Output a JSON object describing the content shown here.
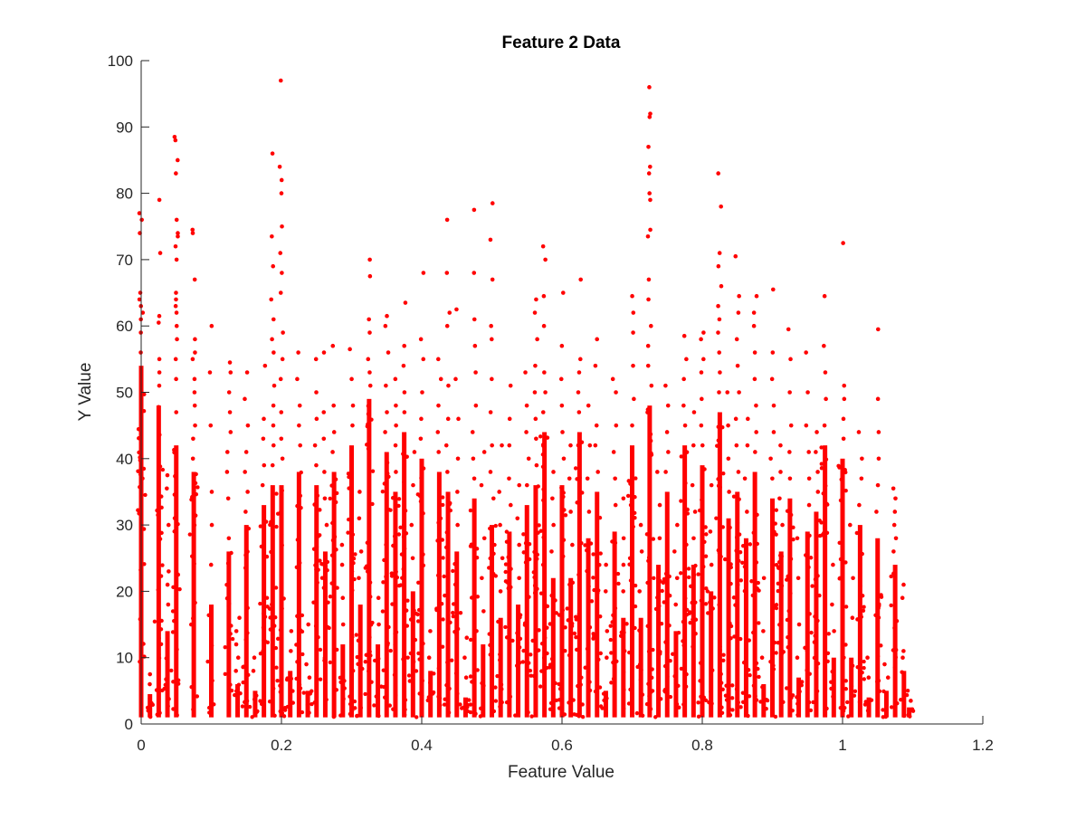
{
  "chart_data": {
    "type": "scatter",
    "title": "Feature 2 Data",
    "xlabel": "Feature Value",
    "ylabel": "Y Value",
    "xlim": [
      0,
      1.2
    ],
    "ylim": [
      0,
      100
    ],
    "xticks": [
      0,
      0.2,
      0.4,
      0.6,
      0.8,
      1,
      1.2
    ],
    "xtick_labels": [
      "0",
      "0.2",
      "0.4",
      "0.6",
      "0.8",
      "1",
      "1.2"
    ],
    "yticks": [
      0,
      10,
      20,
      30,
      40,
      50,
      60,
      70,
      80,
      90,
      100
    ],
    "ytick_labels": [
      "0",
      "10",
      "20",
      "30",
      "40",
      "50",
      "60",
      "70",
      "80",
      "90",
      "100"
    ],
    "grid": false,
    "marker_color": "#ff0000",
    "series": [
      {
        "name": "Feature 2",
        "note": "Points fall in vertical stripes at discrete feature values; each stripe spans from ~1 up to a dense-top value with sparser outliers above.",
        "stripes": [
          {
            "x": 0.0,
            "dense_max": 54,
            "outliers": [
              56,
              59,
              61,
              62,
              63,
              64,
              65,
              74,
              76,
              77
            ]
          },
          {
            "x": 0.0125,
            "dense_max": 4.5,
            "outliers": [
              6,
              7.5
            ]
          },
          {
            "x": 0.025,
            "dense_max": 48,
            "outliers": [
              51,
              53,
              55,
              60.5,
              61.5,
              71,
              79
            ]
          },
          {
            "x": 0.0375,
            "dense_max": 14,
            "outliers": [
              18,
              21,
              23,
              30,
              35.5,
              37.5
            ]
          },
          {
            "x": 0.05,
            "dense_max": 42,
            "outliers": [
              47,
              52,
              55,
              58,
              60,
              62,
              63,
              64,
              65,
              70,
              72,
              73.5,
              74,
              76,
              83,
              85,
              88,
              88.5
            ]
          },
          {
            "x": 0.075,
            "dense_max": 38,
            "outliers": [
              40,
              43,
              45,
              48,
              50,
              52,
              55,
              56,
              58,
              67,
              74,
              74.5
            ]
          },
          {
            "x": 0.1,
            "dense_max": 18,
            "outliers": [
              24,
              30,
              35,
              45,
              53,
              60
            ]
          },
          {
            "x": 0.125,
            "dense_max": 26,
            "outliers": [
              28,
              34,
              38,
              41,
              44,
              47,
              50,
              53,
              54.5
            ]
          },
          {
            "x": 0.1375,
            "dense_max": 6,
            "outliers": [
              8,
              10,
              12,
              14,
              16
            ]
          },
          {
            "x": 0.15,
            "dense_max": 30,
            "outliers": [
              32,
              35,
              38,
              41,
              45,
              49,
              53
            ]
          },
          {
            "x": 0.1625,
            "dense_max": 5,
            "outliers": [
              8,
              10
            ]
          },
          {
            "x": 0.175,
            "dense_max": 33,
            "outliers": [
              36,
              39,
              43,
              46,
              54
            ]
          },
          {
            "x": 0.1875,
            "dense_max": 36,
            "outliers": [
              39,
              42,
              45,
              48,
              51,
              56,
              58,
              61,
              64,
              69,
              73.5,
              86
            ]
          },
          {
            "x": 0.2,
            "dense_max": 36,
            "outliers": [
              40,
              43,
              47,
              52,
              55,
              59,
              65,
              68,
              71,
              75,
              80,
              82,
              84,
              97
            ]
          },
          {
            "x": 0.2125,
            "dense_max": 8,
            "outliers": [
              11,
              14
            ]
          },
          {
            "x": 0.225,
            "dense_max": 38,
            "outliers": [
              42,
              45,
              48,
              52,
              56
            ]
          },
          {
            "x": 0.2375,
            "dense_max": 5,
            "outliers": [
              7,
              9,
              15
            ]
          },
          {
            "x": 0.25,
            "dense_max": 36,
            "outliers": [
              39,
              42,
              46,
              50,
              55
            ]
          },
          {
            "x": 0.2625,
            "dense_max": 26,
            "outliers": [
              30,
              34,
              38,
              43,
              47,
              56
            ]
          },
          {
            "x": 0.275,
            "dense_max": 38,
            "outliers": [
              41,
              44,
              48,
              57
            ]
          },
          {
            "x": 0.2875,
            "dense_max": 12,
            "outliers": [
              15,
              19,
              24,
              27
            ]
          },
          {
            "x": 0.3,
            "dense_max": 42,
            "outliers": [
              45,
              48,
              52,
              56.5
            ]
          },
          {
            "x": 0.3125,
            "dense_max": 18,
            "outliers": [
              22,
              26,
              31,
              35
            ]
          },
          {
            "x": 0.325,
            "dense_max": 49,
            "outliers": [
              51,
              53,
              55,
              59,
              61,
              67.5,
              70
            ]
          },
          {
            "x": 0.3375,
            "dense_max": 12,
            "outliers": [
              15,
              19
            ]
          },
          {
            "x": 0.35,
            "dense_max": 41,
            "outliers": [
              44,
              47,
              51,
              56,
              60,
              61.5
            ]
          },
          {
            "x": 0.3625,
            "dense_max": 35,
            "outliers": [
              38,
              42,
              45,
              48,
              52
            ]
          },
          {
            "x": 0.375,
            "dense_max": 44,
            "outliers": [
              47,
              50,
              54,
              57,
              63.5
            ]
          },
          {
            "x": 0.3875,
            "dense_max": 20,
            "outliers": [
              25,
              30,
              36,
              41
            ]
          },
          {
            "x": 0.4,
            "dense_max": 40,
            "outliers": [
              43,
              46,
              50,
              55,
              58,
              68
            ]
          },
          {
            "x": 0.4125,
            "dense_max": 8,
            "outliers": [
              10,
              14
            ]
          },
          {
            "x": 0.425,
            "dense_max": 38,
            "outliers": [
              41,
              44,
              48,
              52,
              55
            ]
          },
          {
            "x": 0.4375,
            "dense_max": 35,
            "outliers": [
              38,
              42,
              46,
              51,
              60,
              62,
              68,
              76
            ]
          },
          {
            "x": 0.45,
            "dense_max": 26,
            "outliers": [
              30,
              35,
              40,
              46,
              52,
              62.5
            ]
          },
          {
            "x": 0.4625,
            "dense_max": 4,
            "outliers": [
              7,
              10,
              13
            ]
          },
          {
            "x": 0.475,
            "dense_max": 34,
            "outliers": [
              37,
              40,
              44,
              48,
              53,
              57,
              61,
              68,
              77.5
            ]
          },
          {
            "x": 0.4875,
            "dense_max": 12,
            "outliers": [
              17,
              22,
              28,
              36,
              41
            ]
          },
          {
            "x": 0.5,
            "dense_max": 30,
            "outliers": [
              34,
              38,
              42,
              47,
              52,
              58,
              60,
              67,
              73,
              78.5
            ]
          },
          {
            "x": 0.5125,
            "dense_max": 16,
            "outliers": [
              20,
              25,
              30,
              35,
              42
            ]
          },
          {
            "x": 0.525,
            "dense_max": 29,
            "outliers": [
              33,
              37,
              42,
              46,
              51
            ]
          },
          {
            "x": 0.5375,
            "dense_max": 18,
            "outliers": [
              22,
              27,
              31,
              36
            ]
          },
          {
            "x": 0.55,
            "dense_max": 33,
            "outliers": [
              36,
              40,
              44,
              48,
              53
            ]
          },
          {
            "x": 0.5625,
            "dense_max": 36,
            "outliers": [
              39,
              43,
              46,
              50,
              54,
              58,
              62,
              64
            ]
          },
          {
            "x": 0.575,
            "dense_max": 44,
            "outliers": [
              47,
              50,
              53,
              60,
              64.5,
              70,
              72
            ]
          },
          {
            "x": 0.5875,
            "dense_max": 22,
            "outliers": [
              26,
              30,
              34,
              38
            ]
          },
          {
            "x": 0.6,
            "dense_max": 36,
            "outliers": [
              40,
              44,
              48,
              52,
              57,
              65
            ]
          },
          {
            "x": 0.6125,
            "dense_max": 22,
            "outliers": [
              27,
              32,
              37,
              42
            ]
          },
          {
            "x": 0.625,
            "dense_max": 44,
            "outliers": [
              47,
              50,
              53,
              55,
              67
            ]
          },
          {
            "x": 0.6375,
            "dense_max": 28,
            "outliers": [
              32,
              37,
              42,
              48
            ]
          },
          {
            "x": 0.65,
            "dense_max": 35,
            "outliers": [
              38,
              42,
              45,
              54,
              58
            ]
          },
          {
            "x": 0.6625,
            "dense_max": 5,
            "outliers": [
              10,
              14,
              20,
              24
            ]
          },
          {
            "x": 0.675,
            "dense_max": 29,
            "outliers": [
              33,
              37,
              41,
              45,
              50,
              52
            ]
          },
          {
            "x": 0.6875,
            "dense_max": 16,
            "outliers": [
              20,
              24,
              28,
              34
            ]
          },
          {
            "x": 0.7,
            "dense_max": 42,
            "outliers": [
              45,
              49,
              54,
              59,
              62,
              64.5
            ]
          },
          {
            "x": 0.7125,
            "dense_max": 16,
            "outliers": [
              20,
              26,
              30
            ]
          },
          {
            "x": 0.725,
            "dense_max": 48,
            "outliers": [
              51,
              54,
              57,
              60,
              64,
              67,
              73.5,
              74.5,
              79,
              80,
              83,
              84,
              87,
              91.5,
              92,
              96
            ]
          },
          {
            "x": 0.7375,
            "dense_max": 24,
            "outliers": [
              28,
              33,
              38
            ]
          },
          {
            "x": 0.75,
            "dense_max": 35,
            "outliers": [
              38,
              41,
              44,
              48,
              51
            ]
          },
          {
            "x": 0.7625,
            "dense_max": 14,
            "outliers": [
              18,
              22,
              26,
              30
            ]
          },
          {
            "x": 0.775,
            "dense_max": 42,
            "outliers": [
              45,
              48,
              52,
              55,
              58.5
            ]
          },
          {
            "x": 0.7875,
            "dense_max": 24,
            "outliers": [
              28,
              32,
              36,
              42,
              47
            ]
          },
          {
            "x": 0.8,
            "dense_max": 39,
            "outliers": [
              42,
              45,
              49,
              53,
              55,
              58,
              59
            ]
          },
          {
            "x": 0.8125,
            "dense_max": 20,
            "outliers": [
              24,
              29,
              36
            ]
          },
          {
            "x": 0.825,
            "dense_max": 47,
            "outliers": [
              50,
              53,
              56,
              59,
              61,
              63,
              66,
              69,
              71,
              78,
              83
            ]
          },
          {
            "x": 0.8375,
            "dense_max": 31,
            "outliers": [
              35,
              40,
              45,
              50
            ]
          },
          {
            "x": 0.85,
            "dense_max": 35,
            "outliers": [
              38,
              42,
              46,
              50,
              54,
              58,
              62,
              64.5,
              70.5
            ]
          },
          {
            "x": 0.8625,
            "dense_max": 28,
            "outliers": [
              32,
              37,
              42,
              46
            ]
          },
          {
            "x": 0.875,
            "dense_max": 38,
            "outliers": [
              41,
              44,
              48,
              52,
              56,
              60,
              62,
              64.5
            ]
          },
          {
            "x": 0.8875,
            "dense_max": 6,
            "outliers": [
              10,
              14,
              22
            ]
          },
          {
            "x": 0.9,
            "dense_max": 34,
            "outliers": [
              37,
              40,
              44,
              48,
              52,
              56,
              65.5
            ]
          },
          {
            "x": 0.9125,
            "dense_max": 26,
            "outliers": [
              30,
              34,
              38,
              42
            ]
          },
          {
            "x": 0.925,
            "dense_max": 34,
            "outliers": [
              37,
              41,
              45,
              50,
              55,
              59.5
            ]
          },
          {
            "x": 0.9375,
            "dense_max": 7,
            "outliers": [
              10,
              15,
              22,
              28
            ]
          },
          {
            "x": 0.95,
            "dense_max": 29,
            "outliers": [
              33,
              37,
              41,
              45,
              50,
              56
            ]
          },
          {
            "x": 0.9625,
            "dense_max": 32,
            "outliers": [
              35,
              38,
              41,
              44
            ]
          },
          {
            "x": 0.975,
            "dense_max": 42,
            "outliers": [
              45,
              49,
              53,
              57,
              64.5
            ]
          },
          {
            "x": 0.9875,
            "dense_max": 10,
            "outliers": [
              14,
              18,
              24
            ]
          },
          {
            "x": 1.0,
            "dense_max": 40,
            "outliers": [
              43,
              46,
              49,
              51,
              72.5
            ]
          },
          {
            "x": 1.0125,
            "dense_max": 10,
            "outliers": [
              16,
              22,
              30
            ]
          },
          {
            "x": 1.025,
            "dense_max": 30,
            "outliers": [
              33,
              37,
              40,
              44
            ]
          },
          {
            "x": 1.0375,
            "dense_max": 4,
            "outliers": [
              7,
              10
            ]
          },
          {
            "x": 1.05,
            "dense_max": 28,
            "outliers": [
              32,
              36,
              40,
              44,
              49,
              59.5
            ]
          },
          {
            "x": 1.0625,
            "dense_max": 5,
            "outliers": [
              7,
              9
            ]
          },
          {
            "x": 1.075,
            "dense_max": 24,
            "outliers": [
              26,
              28,
              30,
              32,
              34,
              35.5
            ]
          },
          {
            "x": 1.0875,
            "dense_max": 8,
            "outliers": [
              10,
              11,
              19,
              21
            ]
          },
          {
            "x": 1.095,
            "dense_max": 2.5,
            "outliers": [
              3.5
            ]
          }
        ]
      }
    ]
  }
}
